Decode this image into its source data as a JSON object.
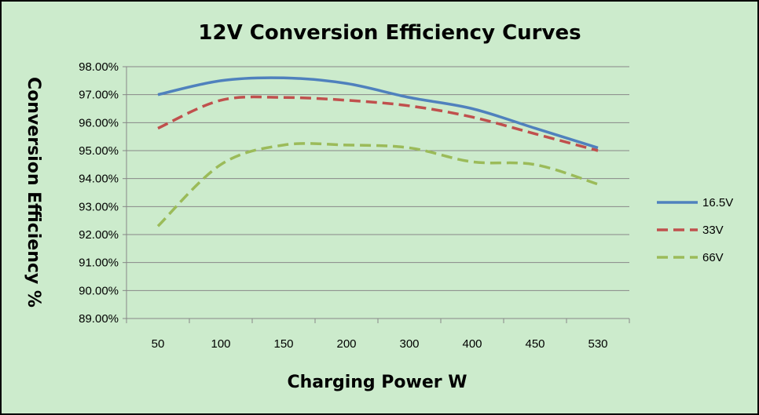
{
  "chart_data": {
    "type": "line",
    "title": "12V Conversion Efficiency Curves",
    "xlabel": "Charging Power W",
    "ylabel": "Conversion Efficiency %",
    "categories": [
      "50",
      "100",
      "150",
      "200",
      "300",
      "400",
      "450",
      "530"
    ],
    "ylim": [
      0.89,
      0.98
    ],
    "yticks": [
      0.98,
      0.97,
      0.96,
      0.95,
      0.94,
      0.93,
      0.92,
      0.91,
      0.9,
      0.89
    ],
    "ytick_labels": [
      "98.00%",
      "97.00%",
      "96.00%",
      "95.00%",
      "94.00%",
      "93.00%",
      "92.00%",
      "91.00%",
      "90.00%",
      "89.00%"
    ],
    "grid": true,
    "legend_position": "right",
    "series": [
      {
        "name": "16.5V",
        "values": [
          0.97,
          0.975,
          0.976,
          0.974,
          0.969,
          0.965,
          0.958,
          0.951
        ],
        "color": "#4f81bd",
        "dash": "solid"
      },
      {
        "name": "33V",
        "values": [
          0.958,
          0.968,
          0.969,
          0.968,
          0.966,
          0.962,
          0.956,
          0.95
        ],
        "color": "#c0504d",
        "dash": "dashed"
      },
      {
        "name": "66V",
        "values": [
          0.923,
          0.945,
          0.952,
          0.952,
          0.951,
          0.946,
          0.945,
          0.938
        ],
        "color": "#9bbb59",
        "dash": "dashed"
      }
    ],
    "colors": {
      "background": "#ccebcc",
      "gridline": "#878787",
      "frame": "#000000"
    }
  }
}
